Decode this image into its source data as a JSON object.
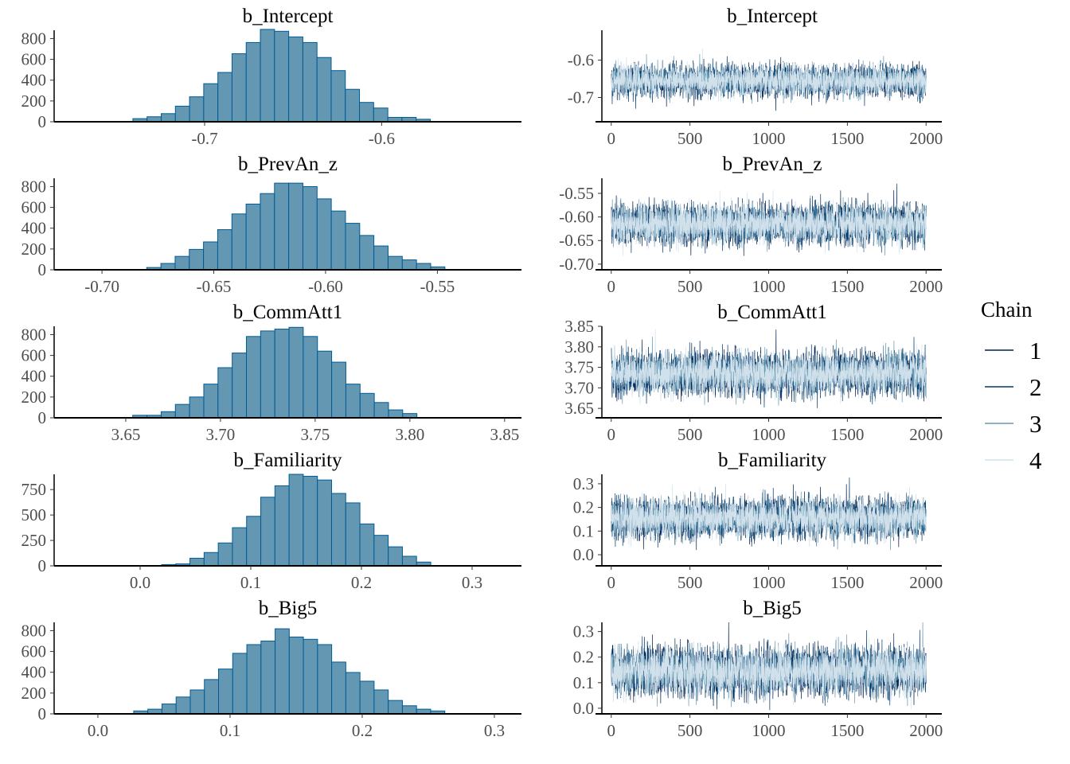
{
  "chart_data": {
    "type": "bar",
    "layout": "5 rows x 2 columns: posterior histogram (left), trace plot (right)",
    "colors": {
      "hist_fill": "#6497b1",
      "hist_outline": "#005b96",
      "chains": [
        "#011f4b",
        "#03396c",
        "#6497b1",
        "#d1e1ec"
      ]
    },
    "legend": {
      "title": "Chain",
      "placement": "right",
      "labels": [
        "1",
        "2",
        "3",
        "4"
      ]
    },
    "panels": [
      {
        "name": "b_Intercept",
        "hist": {
          "xlim": [
            -0.785,
            -0.521
          ],
          "ylim": [
            0,
            880
          ],
          "xticks": [
            -0.7,
            -0.6
          ],
          "xtick_labels": [
            "-0.7",
            "-0.6"
          ],
          "yticks": [
            0,
            200,
            400,
            600,
            800
          ],
          "ytick_labels": [
            "0",
            "200",
            "400",
            "600",
            "800"
          ],
          "bin_start": -0.7405,
          "bin_width": 0.008,
          "counts": [
            30,
            48,
            78,
            150,
            240,
            366,
            474,
            654,
            762,
            888,
            870,
            816,
            762,
            618,
            492,
            312,
            186,
            132,
            42,
            42,
            24
          ]
        },
        "trace": {
          "xlim": [
            -100,
            2100
          ],
          "ylim": [
            -0.765,
            -0.52
          ],
          "xticks": [
            0,
            500,
            1000,
            1500,
            2000
          ],
          "xtick_labels": [
            "0",
            "500",
            "1000",
            "1500",
            "2000"
          ],
          "yticks": [
            -0.6,
            -0.7
          ],
          "ytick_labels": [
            "-0.6",
            "-0.7"
          ],
          "iterations": 2000,
          "mean": -0.655,
          "sd": 0.02
        }
      },
      {
        "name": "b_PrevAn_z",
        "hist": {
          "xlim": [
            -0.7214,
            -0.5124
          ],
          "ylim": [
            0,
            880
          ],
          "xticks": [
            -0.7,
            -0.65,
            -0.6,
            -0.55
          ],
          "xtick_labels": [
            "-0.70",
            "-0.65",
            "-0.60",
            "-0.55"
          ],
          "yticks": [
            0,
            200,
            400,
            600,
            800
          ],
          "ytick_labels": [
            "0",
            "200",
            "400",
            "600",
            "800"
          ],
          "bin_start": -0.68,
          "bin_width": 0.00635,
          "counts": [
            22,
            61,
            129,
            196,
            268,
            386,
            537,
            632,
            733,
            833,
            833,
            800,
            682,
            565,
            447,
            330,
            229,
            129,
            95,
            61,
            28
          ]
        },
        "trace": {
          "xlim": [
            -100,
            2100
          ],
          "ylim": [
            -0.712,
            -0.518
          ],
          "xticks": [
            0,
            500,
            1000,
            1500,
            2000
          ],
          "xtick_labels": [
            "0",
            "500",
            "1000",
            "1500",
            "2000"
          ],
          "yticks": [
            -0.55,
            -0.6,
            -0.65,
            -0.7
          ],
          "ytick_labels": [
            "-0.55",
            "-0.60",
            "-0.65",
            "-0.70"
          ],
          "iterations": 2000,
          "mean": -0.615,
          "sd": 0.02
        }
      },
      {
        "name": "b_CommAtt1",
        "hist": {
          "xlim": [
            3.6122,
            3.8589
          ],
          "ylim": [
            0,
            880
          ],
          "xticks": [
            3.65,
            3.7,
            3.75,
            3.8,
            3.85
          ],
          "xtick_labels": [
            "3.65",
            "3.70",
            "3.75",
            "3.80",
            "3.85"
          ],
          "yticks": [
            0,
            200,
            400,
            600,
            800
          ],
          "ytick_labels": [
            "0",
            "200",
            "400",
            "600",
            "800"
          ],
          "bin_start": 3.6537,
          "bin_width": 0.0075,
          "counts": [
            24,
            24,
            59,
            129,
            200,
            324,
            482,
            623,
            782,
            835,
            853,
            870,
            782,
            641,
            535,
            324,
            235,
            147,
            76,
            41
          ]
        },
        "trace": {
          "xlim": [
            -100,
            2100
          ],
          "ylim": [
            3.627,
            3.85
          ],
          "xticks": [
            0,
            500,
            1000,
            1500,
            2000
          ],
          "xtick_labels": [
            "0",
            "500",
            "1000",
            "1500",
            "2000"
          ],
          "yticks": [
            3.85,
            3.8,
            3.75,
            3.7,
            3.65
          ],
          "ytick_labels": [
            "3.85",
            "3.80",
            "3.75",
            "3.70",
            "3.65"
          ],
          "iterations": 2000,
          "mean": 3.735,
          "sd": 0.025
        }
      },
      {
        "name": "b_Familiarity",
        "hist": {
          "xlim": [
            -0.0777,
            0.3446
          ],
          "ylim": [
            0,
            900
          ],
          "xticks": [
            0.0,
            0.1,
            0.2,
            0.3
          ],
          "xtick_labels": [
            "0.0",
            "0.1",
            "0.2",
            "0.3"
          ],
          "yticks": [
            0,
            250,
            500,
            750
          ],
          "ytick_labels": [
            "0",
            "250",
            "500",
            "750"
          ],
          "bin_start": 0.0194,
          "bin_width": 0.0128,
          "counts": [
            12,
            19,
            75,
            131,
            225,
            375,
            487,
            675,
            787,
            900,
            881,
            844,
            712,
            619,
            412,
            300,
            187,
            94,
            37
          ]
        },
        "trace": {
          "xlim": [
            -100,
            2100
          ],
          "ylim": [
            -0.047,
            0.34
          ],
          "xticks": [
            0,
            500,
            1000,
            1500,
            2000
          ],
          "xtick_labels": [
            "0",
            "500",
            "1000",
            "1500",
            "2000"
          ],
          "yticks": [
            0.3,
            0.2,
            0.1,
            0.0
          ],
          "ytick_labels": [
            "0.3",
            "0.2",
            "0.1",
            "0.0"
          ],
          "iterations": 2000,
          "mean": 0.155,
          "sd": 0.04
        }
      },
      {
        "name": "b_Big5",
        "hist": {
          "xlim": [
            -0.0331,
            0.3205
          ],
          "ylim": [
            0,
            880
          ],
          "xticks": [
            0.0,
            0.1,
            0.2,
            0.3
          ],
          "xtick_labels": [
            "0.0",
            "0.1",
            "0.2",
            "0.3"
          ],
          "yticks": [
            0,
            200,
            400,
            600,
            800
          ],
          "ytick_labels": [
            "0",
            "200",
            "400",
            "600",
            "800"
          ],
          "bin_start": 0.0271,
          "bin_width": 0.0107,
          "counts": [
            28,
            45,
            95,
            162,
            230,
            330,
            431,
            582,
            666,
            700,
            818,
            739,
            717,
            666,
            498,
            398,
            314,
            230,
            129,
            78,
            45,
            28
          ]
        },
        "trace": {
          "xlim": [
            -100,
            2100
          ],
          "ylim": [
            -0.022,
            0.336
          ],
          "xticks": [
            0,
            500,
            1000,
            1500,
            2000
          ],
          "xtick_labels": [
            "0",
            "500",
            "1000",
            "1500",
            "2000"
          ],
          "yticks": [
            0.3,
            0.2,
            0.1,
            0.0
          ],
          "ytick_labels": [
            "0.3",
            "0.2",
            "0.1",
            "0.0"
          ],
          "iterations": 2000,
          "mean": 0.145,
          "sd": 0.045
        }
      }
    ]
  }
}
